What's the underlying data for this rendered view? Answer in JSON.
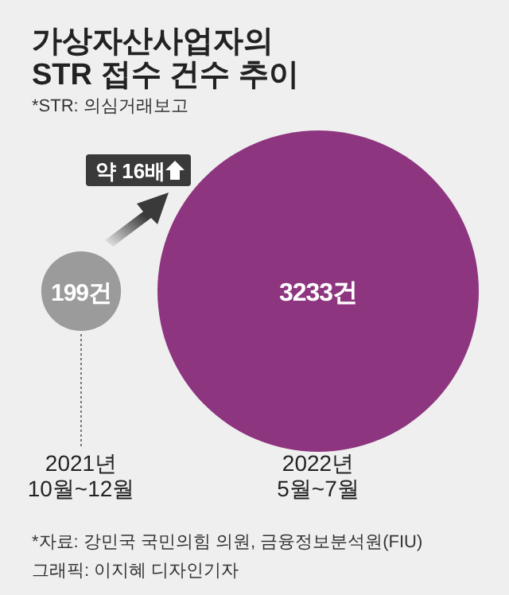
{
  "chart_data": {
    "type": "other",
    "title": "가상자산사업자의\nSTR 접수 건수 추이",
    "subtitle": "*STR: 의심거래보고",
    "categories": [
      "2021년\n10월~12월",
      "2022년\n5월~7월"
    ],
    "values": [
      199,
      3233
    ],
    "value_labels": [
      "199건",
      "3233건"
    ],
    "colors": [
      "#9b9b9b",
      "#8e3580"
    ],
    "annotations": [
      "약 16배",
      "*자료: 강민국 국민의힘 의원, 금융정보분석원(FIU)",
      "그래픽: 이지혜 디자인기자"
    ]
  }
}
